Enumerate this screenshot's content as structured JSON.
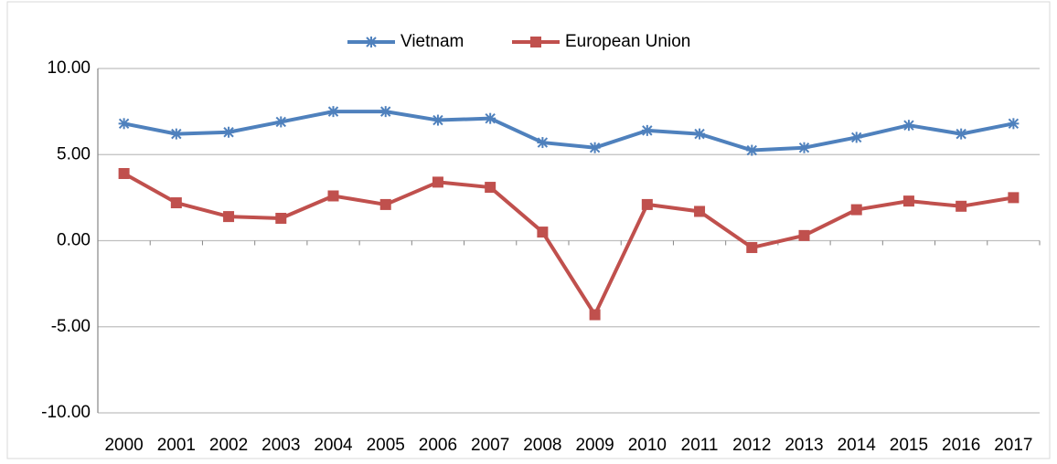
{
  "chart_data": {
    "type": "line",
    "categories": [
      "2000",
      "2001",
      "2002",
      "2003",
      "2004",
      "2005",
      "2006",
      "2007",
      "2008",
      "2009",
      "2010",
      "2011",
      "2012",
      "2013",
      "2014",
      "2015",
      "2016",
      "2017"
    ],
    "series": [
      {
        "name": "Vietnam",
        "color": "#4f81bd",
        "marker": "asterisk",
        "values": [
          6.8,
          6.2,
          6.3,
          6.9,
          7.5,
          7.5,
          7.0,
          7.1,
          5.7,
          5.4,
          6.4,
          6.2,
          5.25,
          5.4,
          6.0,
          6.7,
          6.2,
          6.8
        ]
      },
      {
        "name": "European Union",
        "color": "#c0504d",
        "marker": "square",
        "values": [
          3.9,
          2.2,
          1.4,
          1.3,
          2.6,
          2.1,
          3.4,
          3.1,
          0.5,
          -4.3,
          2.1,
          1.7,
          -0.4,
          0.3,
          1.8,
          2.3,
          2.0,
          2.5
        ]
      }
    ],
    "ylim": [
      -10,
      10
    ],
    "yticks": [
      {
        "value": -10,
        "label": "-10.00"
      },
      {
        "value": -5,
        "label": "-5.00"
      },
      {
        "value": 0,
        "label": "0.00"
      },
      {
        "value": 5,
        "label": "5.00"
      },
      {
        "value": 10,
        "label": "10.00"
      }
    ],
    "grid": true,
    "legend": "top"
  }
}
